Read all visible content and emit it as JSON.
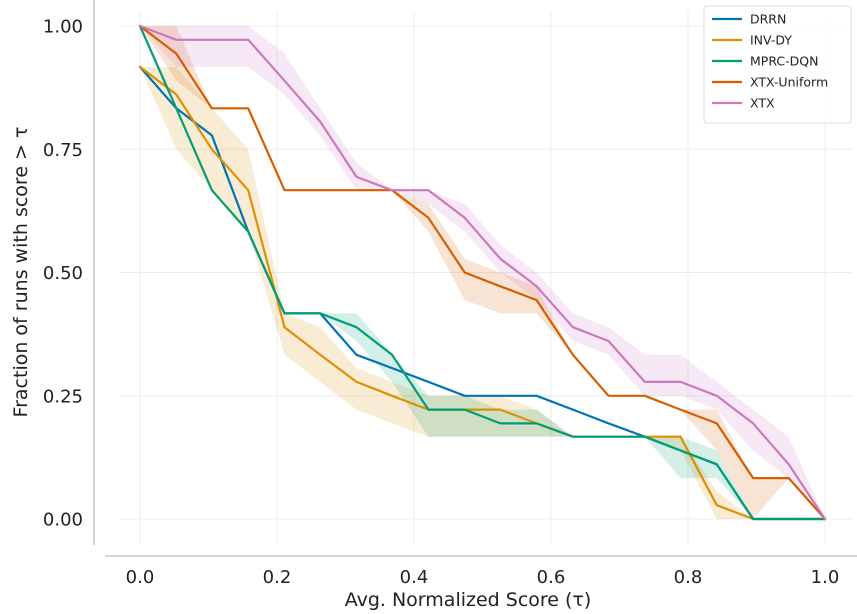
{
  "chart_data": {
    "type": "line",
    "title": "",
    "xlabel": "Avg. Normalized Score (τ)",
    "ylabel": "Fraction of runs with score > τ",
    "xlim": [
      -0.03,
      1.04
    ],
    "ylim": [
      -0.05,
      1.03
    ],
    "xticks": [
      0.0,
      0.2,
      0.4,
      0.6,
      0.8,
      1.0
    ],
    "xtick_labels": [
      "0.0",
      "0.2",
      "0.4",
      "0.6",
      "0.8",
      "1.0"
    ],
    "yticks": [
      0.0,
      0.25,
      0.5,
      0.75,
      1.0
    ],
    "ytick_labels": [
      "0.00",
      "0.25",
      "0.50",
      "0.75",
      "1.00"
    ],
    "grid": true,
    "legend_position": "top-right",
    "x": [
      0.0,
      0.053,
      0.105,
      0.158,
      0.211,
      0.263,
      0.316,
      0.368,
      0.421,
      0.474,
      0.526,
      0.579,
      0.632,
      0.684,
      0.737,
      0.789,
      0.842,
      0.895,
      0.947,
      1.0
    ],
    "series": [
      {
        "name": "DRRN",
        "color": "#0173b2",
        "values": [
          0.917,
          0.833,
          0.778,
          0.583,
          0.417,
          0.417,
          0.333,
          0.306,
          0.278,
          0.25,
          0.25,
          0.25,
          0.222,
          0.194,
          0.167,
          0.139,
          0.111,
          0.0,
          0.0,
          0.0
        ],
        "band_lower": [
          0.917,
          0.833,
          0.778,
          0.583,
          0.417,
          0.417,
          0.333,
          0.306,
          0.278,
          0.25,
          0.25,
          0.25,
          0.222,
          0.194,
          0.167,
          0.139,
          0.111,
          0.0,
          0.0,
          0.0
        ],
        "band_upper": [
          0.917,
          0.833,
          0.778,
          0.583,
          0.417,
          0.417,
          0.333,
          0.306,
          0.278,
          0.25,
          0.25,
          0.25,
          0.222,
          0.194,
          0.167,
          0.139,
          0.111,
          0.0,
          0.0,
          0.0
        ]
      },
      {
        "name": "INV-DY",
        "color": "#de8f05",
        "values": [
          0.917,
          0.861,
          0.75,
          0.667,
          0.389,
          0.333,
          0.278,
          0.25,
          0.222,
          0.222,
          0.222,
          0.194,
          0.167,
          0.167,
          0.167,
          0.167,
          0.028,
          0.0,
          0.0,
          0.0
        ],
        "band_lower": [
          0.917,
          0.75,
          0.667,
          0.583,
          0.333,
          0.278,
          0.222,
          0.194,
          0.167,
          0.167,
          0.167,
          0.167,
          0.167,
          0.167,
          0.167,
          0.139,
          0.0,
          0.0,
          0.0,
          0.0
        ],
        "band_upper": [
          0.917,
          0.917,
          0.833,
          0.75,
          0.417,
          0.389,
          0.306,
          0.278,
          0.25,
          0.25,
          0.25,
          0.222,
          0.167,
          0.167,
          0.167,
          0.167,
          0.056,
          0.0,
          0.0,
          0.0
        ]
      },
      {
        "name": "MPRC-DQN",
        "color": "#029e73",
        "values": [
          1.0,
          0.833,
          0.667,
          0.583,
          0.417,
          0.417,
          0.389,
          0.333,
          0.222,
          0.222,
          0.194,
          0.194,
          0.167,
          0.167,
          0.167,
          0.139,
          0.111,
          0.0,
          0.0,
          0.0
        ],
        "band_lower": [
          1.0,
          0.833,
          0.667,
          0.583,
          0.417,
          0.417,
          0.361,
          0.278,
          0.167,
          0.167,
          0.167,
          0.167,
          0.167,
          0.167,
          0.167,
          0.083,
          0.083,
          0.0,
          0.0,
          0.0
        ],
        "band_upper": [
          1.0,
          0.833,
          0.667,
          0.583,
          0.417,
          0.417,
          0.417,
          0.333,
          0.25,
          0.25,
          0.222,
          0.222,
          0.167,
          0.167,
          0.167,
          0.167,
          0.139,
          0.0,
          0.0,
          0.0
        ]
      },
      {
        "name": "XTX-Uniform",
        "color": "#d55e00",
        "values": [
          1.0,
          0.944,
          0.833,
          0.833,
          0.667,
          0.667,
          0.667,
          0.667,
          0.611,
          0.5,
          0.472,
          0.444,
          0.333,
          0.25,
          0.25,
          0.222,
          0.194,
          0.083,
          0.083,
          0.0
        ],
        "band_lower": [
          1.0,
          0.889,
          0.833,
          0.833,
          0.667,
          0.667,
          0.667,
          0.667,
          0.583,
          0.444,
          0.417,
          0.417,
          0.333,
          0.25,
          0.25,
          0.222,
          0.139,
          0.0,
          0.083,
          0.0
        ],
        "band_upper": [
          1.0,
          1.0,
          0.833,
          0.833,
          0.667,
          0.667,
          0.667,
          0.667,
          0.639,
          0.528,
          0.5,
          0.472,
          0.333,
          0.25,
          0.25,
          0.222,
          0.222,
          0.083,
          0.083,
          0.0
        ]
      },
      {
        "name": "XTX",
        "color": "#cc78bc",
        "values": [
          1.0,
          0.972,
          0.972,
          0.972,
          0.889,
          0.806,
          0.694,
          0.667,
          0.667,
          0.611,
          0.528,
          0.472,
          0.389,
          0.361,
          0.278,
          0.278,
          0.25,
          0.194,
          0.111,
          0.0
        ],
        "band_lower": [
          1.0,
          0.917,
          0.917,
          0.917,
          0.861,
          0.778,
          0.667,
          0.667,
          0.639,
          0.583,
          0.5,
          0.444,
          0.361,
          0.333,
          0.25,
          0.25,
          0.222,
          0.139,
          0.083,
          0.0
        ],
        "band_upper": [
          1.0,
          1.0,
          1.0,
          1.0,
          0.944,
          0.833,
          0.722,
          0.667,
          0.667,
          0.639,
          0.556,
          0.5,
          0.417,
          0.389,
          0.333,
          0.333,
          0.278,
          0.222,
          0.167,
          0.0
        ]
      }
    ]
  }
}
